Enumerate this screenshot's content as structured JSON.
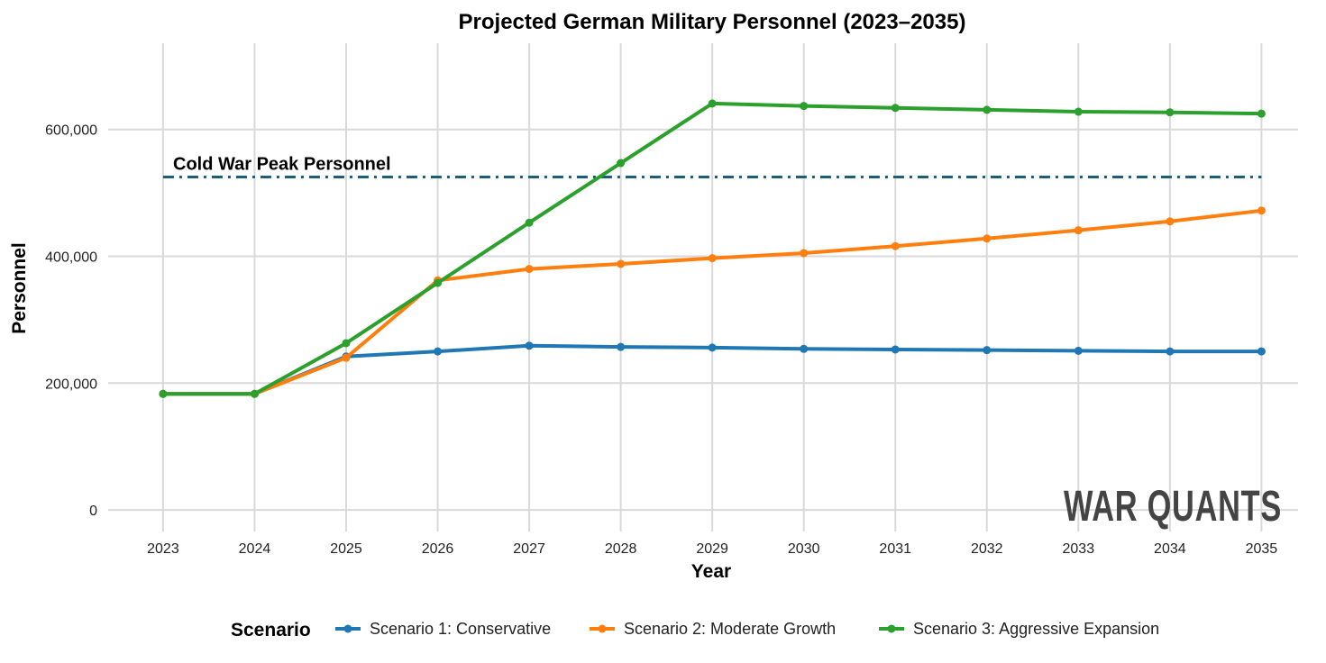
{
  "chart_data": {
    "type": "line",
    "title": "Projected German Military Personnel (2023–2035)",
    "xlabel": "Year",
    "ylabel": "Personnel",
    "x": [
      2023,
      2024,
      2025,
      2026,
      2027,
      2028,
      2029,
      2030,
      2031,
      2032,
      2033,
      2034,
      2035
    ],
    "x_ticks": [
      "2023",
      "2024",
      "2025",
      "2026",
      "2027",
      "2028",
      "2029",
      "2030",
      "2031",
      "2032",
      "2033",
      "2034",
      "2035"
    ],
    "y_ticks": [
      0,
      200000,
      400000,
      600000
    ],
    "y_tick_labels": [
      "0",
      "200,000",
      "400,000",
      "600,000"
    ],
    "ylim": [
      -34000,
      736000
    ],
    "xlim": [
      2022.4,
      2035.4
    ],
    "grid": true,
    "legend": {
      "title": "Scenario",
      "placement": "bottom"
    },
    "series": [
      {
        "name": "Scenario 1: Conservative",
        "color": "#1f77b4",
        "values": [
          183000,
          183000,
          242000,
          250000,
          259000,
          257000,
          256000,
          254000,
          253000,
          252000,
          251000,
          250000,
          250000
        ]
      },
      {
        "name": "Scenario 2: Moderate Growth",
        "color": "#ff7f0e",
        "values": [
          183000,
          183000,
          240000,
          362000,
          380000,
          388000,
          397000,
          405000,
          416000,
          428000,
          441000,
          455000,
          472000
        ]
      },
      {
        "name": "Scenario 3: Aggressive Expansion",
        "color": "#2ca02c",
        "values": [
          183000,
          183000,
          263000,
          358000,
          453000,
          547000,
          641000,
          637000,
          634000,
          631000,
          628000,
          627000,
          625000
        ]
      }
    ],
    "reference_line": {
      "label": "Cold War Peak Personnel",
      "value": 525000,
      "color": "#1b5e7a",
      "style": "dash-dot"
    }
  },
  "watermark": "WAR QUANTS"
}
